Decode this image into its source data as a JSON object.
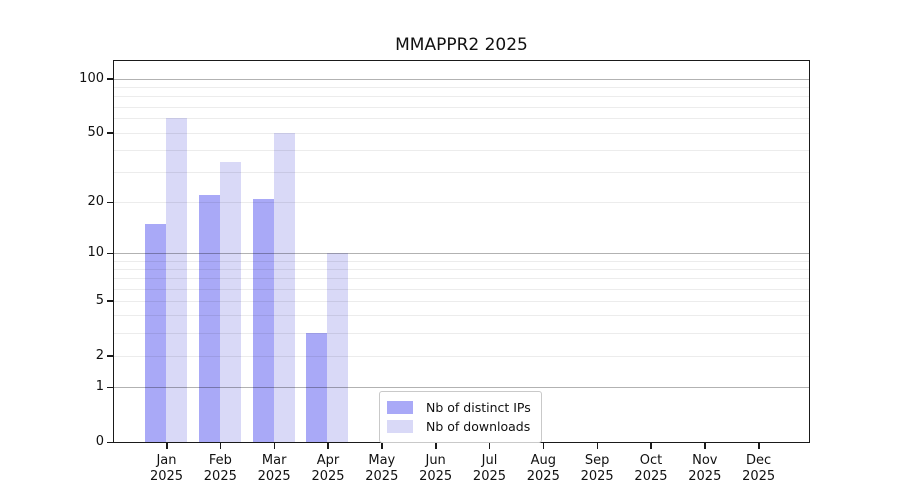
{
  "chart_data": {
    "type": "bar",
    "title": "MMAPPR2 2025",
    "categories": [
      "Jan 2025",
      "Feb 2025",
      "Mar 2025",
      "Apr 2025",
      "May 2025",
      "Jun 2025",
      "Jul 2025",
      "Aug 2025",
      "Sep 2025",
      "Oct 2025",
      "Nov 2025",
      "Dec 2025"
    ],
    "series": [
      {
        "name": "Nb of distinct IPs",
        "color": "#a9a9f7",
        "values": [
          15,
          22,
          21,
          3,
          0,
          0,
          0,
          0,
          0,
          0,
          0,
          0
        ]
      },
      {
        "name": "Nb of downloads",
        "color": "#d9d9f7",
        "values": [
          60,
          34,
          50,
          10,
          0,
          0,
          0,
          0,
          0,
          0,
          0,
          0
        ]
      }
    ],
    "xlabel": "",
    "ylabel": "",
    "y_ticks": [
      0,
      1,
      2,
      5,
      10,
      20,
      50,
      100
    ],
    "y_major_gridlines": [
      1,
      10,
      100
    ],
    "y_minor_gridlines": [
      2,
      3,
      4,
      5,
      6,
      7,
      8,
      9,
      20,
      30,
      40,
      50,
      60,
      70,
      80,
      90
    ],
    "y_scale": "log10(value+1)",
    "ylim": [
      0,
      127
    ],
    "grid": true,
    "legend_position": "lower center, inside plot"
  }
}
